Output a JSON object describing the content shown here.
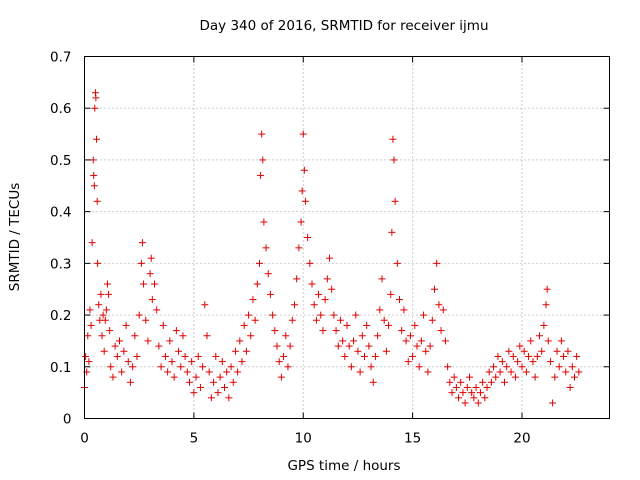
{
  "chart_data": {
    "type": "scatter",
    "title": "Day 340 of 2016, SRMTID for receiver ijmu",
    "xlabel": "GPS time / hours",
    "ylabel": "SRMTID / TECUs",
    "xlim": [
      0,
      24
    ],
    "ylim": [
      0,
      0.7
    ],
    "xticks": [
      0,
      5,
      10,
      15,
      20
    ],
    "yticks": [
      0,
      0.1,
      0.2,
      0.3,
      0.4,
      0.5,
      0.6,
      0.7
    ],
    "xtick_labels": [
      "0",
      "5",
      "10",
      "15",
      "20"
    ],
    "ytick_labels": [
      "0",
      "0.1",
      "0.2",
      "0.3",
      "0.4",
      "0.5",
      "0.6",
      "0.7"
    ],
    "grid": true,
    "marker": "+",
    "color": "#e00000",
    "series": [
      {
        "name": "SRMTID",
        "points": [
          [
            0.0,
            0.06
          ],
          [
            0.05,
            0.12
          ],
          [
            0.1,
            0.09
          ],
          [
            0.15,
            0.16
          ],
          [
            0.2,
            0.11
          ],
          [
            0.25,
            0.21
          ],
          [
            0.3,
            0.18
          ],
          [
            0.35,
            0.34
          ],
          [
            0.4,
            0.5
          ],
          [
            0.42,
            0.47
          ],
          [
            0.45,
            0.45
          ],
          [
            0.47,
            0.6
          ],
          [
            0.5,
            0.63
          ],
          [
            0.52,
            0.62
          ],
          [
            0.55,
            0.54
          ],
          [
            0.58,
            0.42
          ],
          [
            0.6,
            0.3
          ],
          [
            0.65,
            0.22
          ],
          [
            0.7,
            0.19
          ],
          [
            0.75,
            0.24
          ],
          [
            0.8,
            0.16
          ],
          [
            0.85,
            0.2
          ],
          [
            0.9,
            0.13
          ],
          [
            0.95,
            0.19
          ],
          [
            1.0,
            0.21
          ],
          [
            1.05,
            0.26
          ],
          [
            1.1,
            0.24
          ],
          [
            1.15,
            0.17
          ],
          [
            1.2,
            0.1
          ],
          [
            1.3,
            0.08
          ],
          [
            1.4,
            0.14
          ],
          [
            1.5,
            0.12
          ],
          [
            1.6,
            0.15
          ],
          [
            1.7,
            0.09
          ],
          [
            1.8,
            0.13
          ],
          [
            1.9,
            0.18
          ],
          [
            2.0,
            0.11
          ],
          [
            2.1,
            0.07
          ],
          [
            2.2,
            0.1
          ],
          [
            2.3,
            0.16
          ],
          [
            2.4,
            0.12
          ],
          [
            2.5,
            0.2
          ],
          [
            2.6,
            0.3
          ],
          [
            2.65,
            0.34
          ],
          [
            2.7,
            0.26
          ],
          [
            2.8,
            0.19
          ],
          [
            2.9,
            0.15
          ],
          [
            3.0,
            0.28
          ],
          [
            3.05,
            0.31
          ],
          [
            3.1,
            0.23
          ],
          [
            3.2,
            0.26
          ],
          [
            3.3,
            0.21
          ],
          [
            3.4,
            0.14
          ],
          [
            3.5,
            0.1
          ],
          [
            3.6,
            0.18
          ],
          [
            3.7,
            0.12
          ],
          [
            3.8,
            0.09
          ],
          [
            3.9,
            0.15
          ],
          [
            4.0,
            0.11
          ],
          [
            4.1,
            0.08
          ],
          [
            4.2,
            0.17
          ],
          [
            4.3,
            0.13
          ],
          [
            4.4,
            0.1
          ],
          [
            4.5,
            0.16
          ],
          [
            4.6,
            0.12
          ],
          [
            4.7,
            0.09
          ],
          [
            4.8,
            0.07
          ],
          [
            4.9,
            0.11
          ],
          [
            5.0,
            0.05
          ],
          [
            5.1,
            0.08
          ],
          [
            5.2,
            0.12
          ],
          [
            5.3,
            0.06
          ],
          [
            5.4,
            0.1
          ],
          [
            5.5,
            0.22
          ],
          [
            5.6,
            0.16
          ],
          [
            5.7,
            0.09
          ],
          [
            5.8,
            0.04
          ],
          [
            5.9,
            0.07
          ],
          [
            6.0,
            0.12
          ],
          [
            6.1,
            0.05
          ],
          [
            6.2,
            0.08
          ],
          [
            6.3,
            0.11
          ],
          [
            6.4,
            0.06
          ],
          [
            6.5,
            0.09
          ],
          [
            6.6,
            0.04
          ],
          [
            6.7,
            0.1
          ],
          [
            6.8,
            0.07
          ],
          [
            6.9,
            0.13
          ],
          [
            7.0,
            0.09
          ],
          [
            7.1,
            0.15
          ],
          [
            7.2,
            0.11
          ],
          [
            7.3,
            0.18
          ],
          [
            7.4,
            0.13
          ],
          [
            7.5,
            0.2
          ],
          [
            7.6,
            0.16
          ],
          [
            7.7,
            0.23
          ],
          [
            7.8,
            0.19
          ],
          [
            7.9,
            0.26
          ],
          [
            8.0,
            0.3
          ],
          [
            8.05,
            0.47
          ],
          [
            8.1,
            0.55
          ],
          [
            8.15,
            0.5
          ],
          [
            8.2,
            0.38
          ],
          [
            8.3,
            0.33
          ],
          [
            8.4,
            0.28
          ],
          [
            8.5,
            0.24
          ],
          [
            8.6,
            0.2
          ],
          [
            8.7,
            0.17
          ],
          [
            8.8,
            0.14
          ],
          [
            8.9,
            0.11
          ],
          [
            9.0,
            0.08
          ],
          [
            9.1,
            0.12
          ],
          [
            9.2,
            0.16
          ],
          [
            9.3,
            0.1
          ],
          [
            9.4,
            0.14
          ],
          [
            9.5,
            0.19
          ],
          [
            9.6,
            0.22
          ],
          [
            9.7,
            0.27
          ],
          [
            9.8,
            0.33
          ],
          [
            9.9,
            0.38
          ],
          [
            9.95,
            0.44
          ],
          [
            10.0,
            0.55
          ],
          [
            10.05,
            0.48
          ],
          [
            10.1,
            0.42
          ],
          [
            10.2,
            0.35
          ],
          [
            10.3,
            0.3
          ],
          [
            10.4,
            0.26
          ],
          [
            10.5,
            0.22
          ],
          [
            10.6,
            0.19
          ],
          [
            10.7,
            0.24
          ],
          [
            10.8,
            0.2
          ],
          [
            10.9,
            0.17
          ],
          [
            11.0,
            0.23
          ],
          [
            11.1,
            0.27
          ],
          [
            11.2,
            0.31
          ],
          [
            11.3,
            0.25
          ],
          [
            11.4,
            0.2
          ],
          [
            11.5,
            0.17
          ],
          [
            11.6,
            0.14
          ],
          [
            11.7,
            0.19
          ],
          [
            11.8,
            0.15
          ],
          [
            11.9,
            0.12
          ],
          [
            12.0,
            0.18
          ],
          [
            12.1,
            0.14
          ],
          [
            12.2,
            0.1
          ],
          [
            12.3,
            0.15
          ],
          [
            12.4,
            0.2
          ],
          [
            12.5,
            0.13
          ],
          [
            12.6,
            0.09
          ],
          [
            12.7,
            0.16
          ],
          [
            12.8,
            0.12
          ],
          [
            12.9,
            0.18
          ],
          [
            13.0,
            0.14
          ],
          [
            13.1,
            0.1
          ],
          [
            13.2,
            0.07
          ],
          [
            13.3,
            0.12
          ],
          [
            13.4,
            0.16
          ],
          [
            13.5,
            0.21
          ],
          [
            13.6,
            0.27
          ],
          [
            13.7,
            0.19
          ],
          [
            13.8,
            0.13
          ],
          [
            13.9,
            0.18
          ],
          [
            14.0,
            0.24
          ],
          [
            14.05,
            0.36
          ],
          [
            14.1,
            0.54
          ],
          [
            14.15,
            0.5
          ],
          [
            14.2,
            0.42
          ],
          [
            14.3,
            0.3
          ],
          [
            14.4,
            0.23
          ],
          [
            14.5,
            0.17
          ],
          [
            14.6,
            0.21
          ],
          [
            14.7,
            0.15
          ],
          [
            14.8,
            0.11
          ],
          [
            14.9,
            0.16
          ],
          [
            15.0,
            0.12
          ],
          [
            15.1,
            0.18
          ],
          [
            15.2,
            0.14
          ],
          [
            15.3,
            0.1
          ],
          [
            15.4,
            0.15
          ],
          [
            15.5,
            0.2
          ],
          [
            15.6,
            0.13
          ],
          [
            15.7,
            0.09
          ],
          [
            15.8,
            0.14
          ],
          [
            15.9,
            0.19
          ],
          [
            16.0,
            0.25
          ],
          [
            16.1,
            0.3
          ],
          [
            16.2,
            0.22
          ],
          [
            16.3,
            0.17
          ],
          [
            16.4,
            0.21
          ],
          [
            16.5,
            0.15
          ],
          [
            16.6,
            0.1
          ],
          [
            16.7,
            0.07
          ],
          [
            16.8,
            0.05
          ],
          [
            16.9,
            0.08
          ],
          [
            17.0,
            0.06
          ],
          [
            17.1,
            0.04
          ],
          [
            17.2,
            0.07
          ],
          [
            17.3,
            0.05
          ],
          [
            17.4,
            0.03
          ],
          [
            17.5,
            0.06
          ],
          [
            17.6,
            0.08
          ],
          [
            17.7,
            0.05
          ],
          [
            17.8,
            0.04
          ],
          [
            17.9,
            0.06
          ],
          [
            18.0,
            0.03
          ],
          [
            18.1,
            0.05
          ],
          [
            18.2,
            0.07
          ],
          [
            18.3,
            0.04
          ],
          [
            18.4,
            0.06
          ],
          [
            18.5,
            0.09
          ],
          [
            18.6,
            0.07
          ],
          [
            18.7,
            0.1
          ],
          [
            18.8,
            0.08
          ],
          [
            18.9,
            0.12
          ],
          [
            19.0,
            0.09
          ],
          [
            19.1,
            0.11
          ],
          [
            19.2,
            0.07
          ],
          [
            19.3,
            0.1
          ],
          [
            19.4,
            0.13
          ],
          [
            19.5,
            0.09
          ],
          [
            19.6,
            0.12
          ],
          [
            19.7,
            0.08
          ],
          [
            19.8,
            0.11
          ],
          [
            19.9,
            0.14
          ],
          [
            20.0,
            0.1
          ],
          [
            20.1,
            0.13
          ],
          [
            20.2,
            0.09
          ],
          [
            20.3,
            0.12
          ],
          [
            20.4,
            0.15
          ],
          [
            20.5,
            0.11
          ],
          [
            20.6,
            0.08
          ],
          [
            20.7,
            0.12
          ],
          [
            20.8,
            0.16
          ],
          [
            20.9,
            0.13
          ],
          [
            21.0,
            0.18
          ],
          [
            21.1,
            0.22
          ],
          [
            21.15,
            0.25
          ],
          [
            21.2,
            0.15
          ],
          [
            21.3,
            0.11
          ],
          [
            21.4,
            0.03
          ],
          [
            21.5,
            0.08
          ],
          [
            21.6,
            0.13
          ],
          [
            21.7,
            0.1
          ],
          [
            21.8,
            0.15
          ],
          [
            21.9,
            0.12
          ],
          [
            22.0,
            0.09
          ],
          [
            22.1,
            0.13
          ],
          [
            22.2,
            0.06
          ],
          [
            22.3,
            0.1
          ],
          [
            22.4,
            0.08
          ],
          [
            22.5,
            0.12
          ],
          [
            22.6,
            0.09
          ]
        ]
      }
    ]
  }
}
